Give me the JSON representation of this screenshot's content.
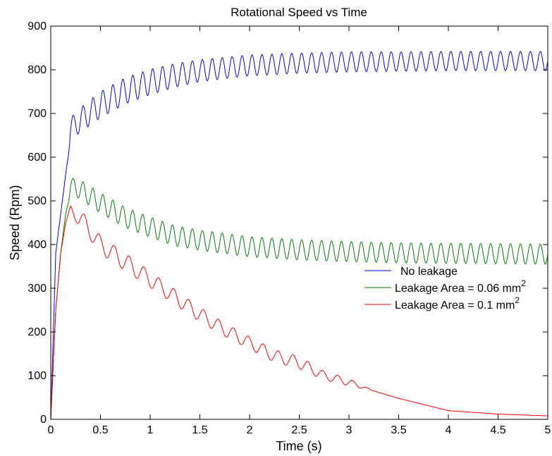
{
  "chart_data": {
    "type": "line",
    "title": "Rotational Speed vs Time",
    "xlabel": "Time (s)",
    "ylabel": "Speed (Rpm)",
    "xlim": [
      0,
      5
    ],
    "ylim": [
      0,
      900
    ],
    "x_ticks": [
      "0",
      "0.5",
      "1",
      "1.5",
      "2",
      "2.5",
      "3",
      "3.5",
      "4",
      "4.5",
      "5"
    ],
    "y_ticks": [
      "0",
      "100",
      "200",
      "300",
      "400",
      "500",
      "600",
      "700",
      "800",
      "900"
    ],
    "grid": false,
    "legend_position": "right",
    "series": [
      {
        "name": "No leakage",
        "color": "#0000ff",
        "x": [
          0,
          0.05,
          0.1,
          0.15,
          0.2,
          0.3,
          0.5,
          0.75,
          1,
          1.25,
          1.5,
          2,
          2.5,
          3,
          3.5,
          4,
          4.5,
          5
        ],
        "y": [
          0,
          380,
          470,
          560,
          665,
          685,
          720,
          752,
          772,
          787,
          798,
          810,
          815,
          818,
          819,
          820,
          820,
          820
        ],
        "oscillation_amplitude": [
          0,
          0,
          0,
          0,
          25,
          28,
          30,
          30,
          29,
          27,
          25,
          24,
          23,
          23,
          22,
          22,
          22,
          22
        ],
        "oscillation_period": 0.1
      },
      {
        "name": "Leakage Area = 0.06 mm",
        "name_superscript": "2",
        "color": "#008000",
        "x": [
          0,
          0.05,
          0.1,
          0.15,
          0.2,
          0.3,
          0.5,
          0.75,
          1,
          1.25,
          1.5,
          2,
          2.5,
          3,
          3.5,
          4,
          4.5,
          5
        ],
        "y": [
          0,
          250,
          380,
          470,
          535,
          525,
          495,
          462,
          440,
          420,
          410,
          395,
          388,
          384,
          381,
          380,
          379,
          378
        ],
        "oscillation_amplitude": [
          0,
          0,
          0,
          0,
          18,
          22,
          23,
          23,
          23,
          23,
          23,
          23,
          23,
          23,
          23,
          23,
          23,
          23
        ],
        "oscillation_period": 0.1
      },
      {
        "name": "Leakage Area = 0.1 mm",
        "name_superscript": "2",
        "color": "#ff0000",
        "x": [
          0,
          0.05,
          0.1,
          0.15,
          0.2,
          0.3,
          0.5,
          0.75,
          1,
          1.25,
          1.5,
          1.75,
          2,
          2.25,
          2.5,
          2.75,
          3,
          3.25,
          3.5,
          4,
          4.5,
          5
        ],
        "y": [
          0,
          250,
          380,
          450,
          478,
          460,
          400,
          360,
          320,
          280,
          240,
          205,
          175,
          145,
          130,
          100,
          85,
          65,
          48,
          20,
          12,
          8
        ],
        "oscillation_amplitude": [
          0,
          0,
          0,
          0,
          12,
          20,
          20,
          20,
          18,
          17,
          16,
          15,
          14,
          14,
          14,
          10,
          8,
          0,
          0,
          0,
          0,
          0
        ],
        "oscillation_period": 0.15
      }
    ]
  }
}
